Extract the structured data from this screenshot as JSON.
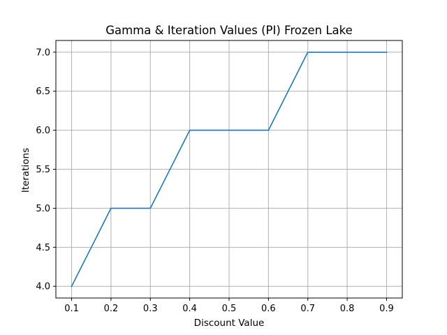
{
  "chart_data": {
    "type": "line",
    "title": "Gamma & Iteration Values (PI) Frozen Lake",
    "xlabel": "Discount Value",
    "ylabel": "Iterations",
    "x": [
      0.1,
      0.2,
      0.3,
      0.4,
      0.5,
      0.6,
      0.7,
      0.8,
      0.9
    ],
    "series": [
      {
        "values": [
          4.0,
          5.0,
          5.0,
          6.0,
          6.0,
          6.0,
          7.0,
          7.0,
          7.0
        ],
        "color": "#1f77b4"
      }
    ],
    "xlim": [
      0.06,
      0.94
    ],
    "ylim": [
      3.85,
      7.15
    ],
    "xticks": [
      0.1,
      0.2,
      0.3,
      0.4,
      0.5,
      0.6,
      0.7,
      0.8,
      0.9
    ],
    "xtick_labels": [
      "0.1",
      "0.2",
      "0.3",
      "0.4",
      "0.5",
      "0.6",
      "0.7",
      "0.8",
      "0.9"
    ],
    "yticks": [
      4.0,
      4.5,
      5.0,
      5.5,
      6.0,
      6.5,
      7.0
    ],
    "ytick_labels": [
      "4.0",
      "4.5",
      "5.0",
      "5.5",
      "6.0",
      "6.5",
      "7.0"
    ],
    "grid": true,
    "legend": "none"
  }
}
